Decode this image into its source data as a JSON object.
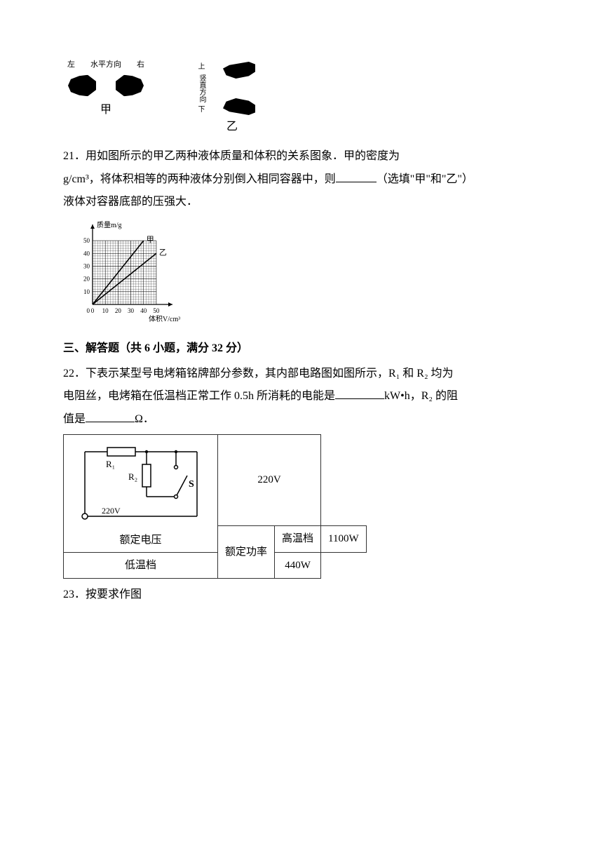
{
  "fig20": {
    "jia": {
      "left_label": "左",
      "right_label": "右",
      "mid_label": "水平方向",
      "caption": "甲"
    },
    "yi": {
      "top_label": "上",
      "bottom_label": "下",
      "mid_label": "竖直方向",
      "caption": "乙"
    }
  },
  "q21": {
    "num": "21．",
    "text1": "用如图所示的甲乙两种液体质量和体积的关系图象．甲的密度为",
    "text2": "g/cm³，将体积相等的两种液体分别倒入相同容器中，则",
    "text3": "（选填\"甲\"和\"乙\"）",
    "text4": "液体对容器底部的压强大．"
  },
  "graph21": {
    "type": "line",
    "x_label": "体积V/cm³",
    "y_label": "质量m/g",
    "x_ticks": [
      0,
      10,
      20,
      30,
      40,
      50
    ],
    "y_ticks": [
      0,
      10,
      20,
      30,
      40,
      50
    ],
    "xlim": [
      0,
      55
    ],
    "ylim": [
      0,
      55
    ],
    "series": [
      {
        "name": "甲",
        "points": [
          [
            0,
            0
          ],
          [
            40,
            50
          ]
        ],
        "color": "#000000",
        "width": 1.6
      },
      {
        "name": "乙",
        "points": [
          [
            0,
            0
          ],
          [
            50,
            40
          ]
        ],
        "color": "#000000",
        "width": 1.6
      }
    ],
    "grid_color": "#000000",
    "background_color": "#ffffff",
    "tick_fontsize": 9,
    "label_fontsize": 10
  },
  "section3": {
    "title": "三、解答题（共 6 小题，满分 32 分）"
  },
  "q22": {
    "num": "22．",
    "text1": "下表示某型号电烤箱铭牌部分参数，其内部电路图如图所示，R₁ 和 R₂ 均为",
    "text2": "电阻丝，电烤箱在低温档正常工作 0.5h 所消耗的电能是",
    "text3": "kW•h，R₂ 的阻",
    "text4": "值是",
    "text5": "Ω．"
  },
  "table22": {
    "type": "table",
    "columns_widths": [
      220,
      85,
      85
    ],
    "rows": [
      [
        "__circuit__",
        "",
        "220V"
      ],
      [
        "额定电压",
        "",
        ""
      ],
      [
        "额定功率",
        "高温档",
        "1100W"
      ],
      [
        "",
        "低温档",
        "440W"
      ]
    ],
    "border_color": "#333333",
    "font_size": 15
  },
  "circuit22": {
    "labels": {
      "R1": "R₁",
      "R2": "R₂",
      "S": "S",
      "V": "220V"
    },
    "color": "#000000",
    "line_width": 1.5
  },
  "q23": {
    "num": "23．",
    "text": "按要求作图"
  }
}
